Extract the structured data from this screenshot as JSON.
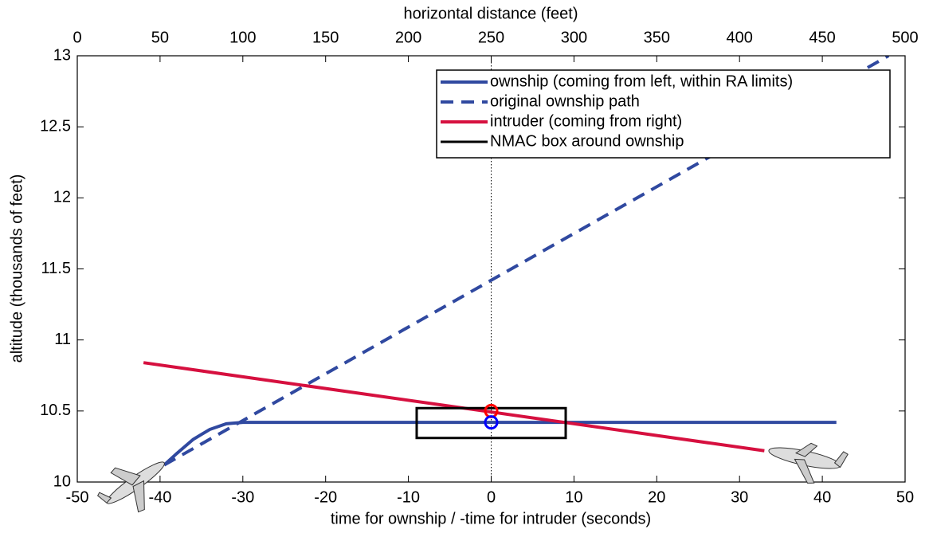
{
  "chart_data": {
    "type": "line",
    "xlabel": "time for ownship / -time for intruder (seconds)",
    "ylabel": "altitude (thousands of feet)",
    "x2label": "horizontal distance (feet)",
    "xlim": [
      -50,
      50
    ],
    "xticks": [
      -50,
      -40,
      -30,
      -20,
      -10,
      0,
      10,
      20,
      30,
      40,
      50
    ],
    "x2lim": [
      0,
      500
    ],
    "x2ticks": [
      0,
      50,
      100,
      150,
      200,
      250,
      300,
      350,
      400,
      450,
      500
    ],
    "ylim": [
      10,
      13
    ],
    "yticks": [
      10,
      10.5,
      11,
      11.5,
      12,
      12.5,
      13
    ],
    "vline": 0,
    "legend": "upper right",
    "series": [
      {
        "name": "ownship (coming from left, within RA limits)",
        "color": "#3049a0",
        "dash": false,
        "x": [
          -39.5,
          -38,
          -36,
          -34,
          -32,
          -30,
          41.7
        ],
        "values": [
          10.12,
          10.2,
          10.3,
          10.37,
          10.41,
          10.42,
          10.42
        ]
      },
      {
        "name": "original ownship path",
        "color": "#3049a0",
        "dash": true,
        "x": [
          -39.5,
          48
        ],
        "values": [
          10.12,
          13
        ]
      },
      {
        "name": "intruder (coming from right)",
        "color": "#d6103f",
        "dash": false,
        "x": [
          -42,
          33
        ],
        "values": [
          10.84,
          10.22
        ]
      }
    ],
    "box": {
      "name": "NMAC box around ownship",
      "color": "#000000",
      "x": [
        -9,
        9
      ],
      "y": [
        10.31,
        10.52
      ]
    },
    "markers": [
      {
        "x": 0,
        "y": 10.5,
        "color": "#ff0000"
      },
      {
        "x": 0,
        "y": 10.42,
        "color": "#0000ff"
      }
    ]
  }
}
